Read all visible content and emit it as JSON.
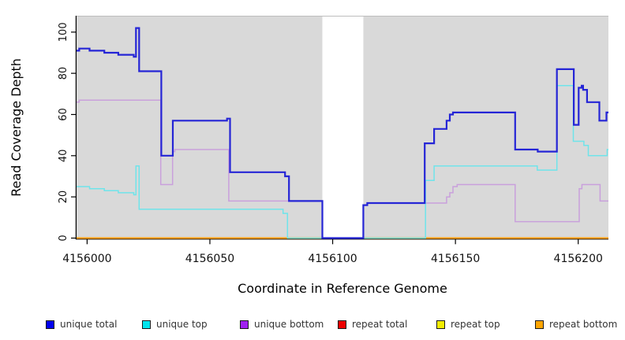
{
  "chart_data": {
    "type": "line",
    "subtype": "step-coverage-plot",
    "title": "",
    "xlabel": "Coordinate in Reference Genome",
    "ylabel": "Read Coverage Depth",
    "x_ticks": [
      4156000,
      4156050,
      4156100,
      4156150,
      4156200
    ],
    "y_ticks": [
      0,
      20,
      40,
      60,
      80,
      100
    ],
    "xlim": [
      4155995.7,
      4156212.3
    ],
    "ylim": [
      0,
      108
    ],
    "grid": "off",
    "legend_position": "bottom",
    "plot_background": "#d9d9d9",
    "page_background": "#ffffff",
    "axis_color": "#000000",
    "plot_top_border_color": "#bdbdbd",
    "missing_data_region": {
      "x_start": 4156095.8,
      "x_end": 4156112.5,
      "color": "#ffffff"
    },
    "series": [
      {
        "key": "unique-total",
        "label": "unique total",
        "line_color": "#2525d6",
        "legend_color": "#0000ee",
        "line_width": 2.2,
        "x_breaks": [
          4155995.7,
          4155996.8,
          4156001.0,
          4156007.0,
          4156012.7,
          4156019.0,
          4156019.9,
          4156021.2,
          4156030.2,
          4156034.9,
          4156057.0,
          4156058.2,
          4156080.6,
          4156082.2,
          4156095.8,
          4156112.5,
          4156114.1,
          4156137.5,
          4156141.3,
          4156146.4,
          4156147.7,
          4156149.0,
          4156174.3,
          4156183.5,
          4156191.3,
          4156198.2,
          4156200.2,
          4156201.4,
          4156202.0,
          4156203.6,
          4156208.6,
          4156211.5,
          4156212.3
        ],
        "values": [
          91,
          92,
          91,
          90,
          89,
          88,
          102,
          81,
          40,
          57,
          58,
          32,
          30,
          18,
          0,
          16,
          17,
          46,
          53,
          57,
          60,
          61,
          43,
          42,
          82,
          55,
          73,
          74,
          72,
          66,
          57,
          61
        ]
      },
      {
        "key": "unique-top",
        "label": "unique top",
        "line_color": "#6fe4ea",
        "legend_color": "#00e5ee",
        "line_width": 1.5,
        "x_breaks": [
          4155995.7,
          4156001.0,
          4156007.0,
          4156012.7,
          4156019.0,
          4156019.9,
          4156021.2,
          4156079.8,
          4156081.6,
          4156137.8,
          4156141.3,
          4156183.3,
          4156191.3,
          4156198.0,
          4156202.3,
          4156204.1,
          4156211.8,
          4156212.3
        ],
        "values": [
          25,
          24,
          23,
          22,
          21,
          35,
          14,
          12,
          0,
          28,
          35,
          33,
          74,
          47,
          45,
          40,
          43
        ]
      },
      {
        "key": "unique-bottom",
        "label": "unique bottom",
        "line_color": "#c9a0dc",
        "legend_color": "#a020f0",
        "line_width": 1.5,
        "x_breaks": [
          4155995.7,
          4155996.8,
          4156030.0,
          4156034.8,
          4156035.7,
          4156057.7,
          4156095.8,
          4156112.5,
          4156114.1,
          4156146.4,
          4156147.7,
          4156149.0,
          4156150.7,
          4156174.3,
          4156200.4,
          4156201.5,
          4156208.9,
          4156212.3
        ],
        "values": [
          66,
          67,
          26,
          42,
          43,
          18,
          0,
          16,
          17,
          20,
          22,
          25,
          26,
          8,
          24,
          26,
          18
        ]
      },
      {
        "key": "repeat-total",
        "label": "repeat total",
        "line_color": "#e60000",
        "legend_color": "#ee0000",
        "line_width": 1.5,
        "x_breaks": [
          4155995.7,
          4156212.3
        ],
        "values": [
          0
        ]
      },
      {
        "key": "repeat-top",
        "label": "repeat top",
        "line_color": "#f5f500",
        "legend_color": "#f2ec00",
        "line_width": 1.5,
        "x_breaks": [
          4155995.7,
          4156212.3
        ],
        "values": [
          0
        ]
      },
      {
        "key": "repeat-bottom",
        "label": "repeat bottom",
        "line_color": "#ff9f00",
        "legend_color": "#ffa500",
        "line_width": 2,
        "x_breaks": [
          4155995.7,
          4156212.3
        ],
        "values": [
          0
        ]
      }
    ],
    "draw_order": [
      "repeat-total",
      "repeat-top",
      "repeat-bottom",
      "unique-bottom",
      "unique-top",
      "unique-total"
    ]
  }
}
